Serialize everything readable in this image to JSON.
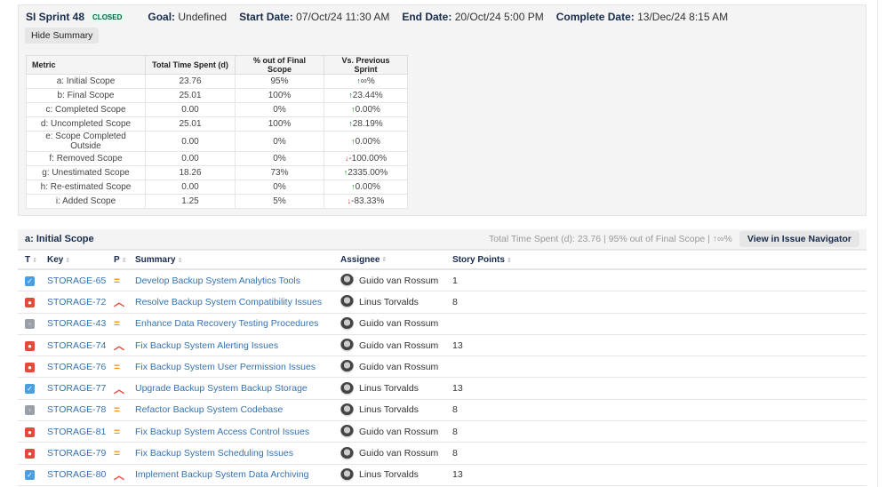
{
  "sprint": {
    "title": "SI Sprint 48",
    "status": "CLOSED",
    "goal_label": "Goal:",
    "goal": "Undefined",
    "start_label": "Start Date:",
    "start": "07/Oct/24 11:30 AM",
    "end_label": "End Date:",
    "end": "20/Oct/24 5:00 PM",
    "complete_label": "Complete Date:",
    "complete": "13/Dec/24 8:15 AM",
    "hide_summary": "Hide Summary"
  },
  "metrics": {
    "headers": [
      "Metric",
      "Total Time Spent (d)",
      "% out of Final Scope",
      "Vs. Previous Sprint"
    ],
    "rows": [
      {
        "metric": "a: Initial Scope",
        "time": "23.76",
        "pct": "95%",
        "dir": "up",
        "vs": "∞%"
      },
      {
        "metric": "b: Final Scope",
        "time": "25.01",
        "pct": "100%",
        "dir": "up",
        "vs": "23.44%"
      },
      {
        "metric": "c: Completed Scope",
        "time": "0.00",
        "pct": "0%",
        "dir": "up",
        "vs": "0.00%"
      },
      {
        "metric": "d: Uncompleted Scope",
        "time": "25.01",
        "pct": "100%",
        "dir": "up",
        "vs": "28.19%"
      },
      {
        "metric": "e: Scope Completed Outside",
        "time": "0.00",
        "pct": "0%",
        "dir": "up",
        "vs": "0.00%"
      },
      {
        "metric": "f: Removed Scope",
        "time": "0.00",
        "pct": "0%",
        "dir": "down",
        "vs": "-100.00%"
      },
      {
        "metric": "g: Unestimated Scope",
        "time": "18.26",
        "pct": "73%",
        "dir": "up",
        "vs": "2335.00%"
      },
      {
        "metric": "h: Re-estimated Scope",
        "time": "0.00",
        "pct": "0%",
        "dir": "up",
        "vs": "0.00%"
      },
      {
        "metric": "i: Added Scope",
        "time": "1.25",
        "pct": "5%",
        "dir": "down",
        "vs": "-83.33%"
      }
    ]
  },
  "scope": {
    "title": "a: Initial Scope",
    "info": "Total Time Spent (d): 23.76 | 95% out of Final Scope | ↑∞%",
    "nav_button": "View in Issue Navigator",
    "columns": [
      "T",
      "Key",
      "P",
      "Summary",
      "Assignee",
      "Story Points"
    ],
    "issues": [
      {
        "type": "task",
        "key": "STORAGE-65",
        "priority": "medium",
        "summary": "Develop Backup System Analytics Tools",
        "assignee": "Guido van Rossum",
        "points": "1"
      },
      {
        "type": "bug",
        "key": "STORAGE-72",
        "priority": "high",
        "summary": "Resolve Backup System Compatibility Issues",
        "assignee": "Linus Torvalds",
        "points": "8"
      },
      {
        "type": "other",
        "key": "STORAGE-43",
        "priority": "medium",
        "summary": "Enhance Data Recovery Testing Procedures",
        "assignee": "Guido van Rossum",
        "points": ""
      },
      {
        "type": "bug",
        "key": "STORAGE-74",
        "priority": "high",
        "summary": "Fix Backup System Alerting Issues",
        "assignee": "Guido van Rossum",
        "points": "13"
      },
      {
        "type": "bug",
        "key": "STORAGE-76",
        "priority": "medium",
        "summary": "Fix Backup System User Permission Issues",
        "assignee": "Guido van Rossum",
        "points": ""
      },
      {
        "type": "task",
        "key": "STORAGE-77",
        "priority": "high",
        "summary": "Upgrade Backup System Backup Storage",
        "assignee": "Linus Torvalds",
        "points": "13"
      },
      {
        "type": "other",
        "key": "STORAGE-78",
        "priority": "medium",
        "summary": "Refactor Backup System Codebase",
        "assignee": "Linus Torvalds",
        "points": "8"
      },
      {
        "type": "bug",
        "key": "STORAGE-81",
        "priority": "medium",
        "summary": "Fix Backup System Access Control Issues",
        "assignee": "Guido van Rossum",
        "points": "8"
      },
      {
        "type": "bug",
        "key": "STORAGE-79",
        "priority": "medium",
        "summary": "Fix Backup System Scheduling Issues",
        "assignee": "Guido van Rossum",
        "points": "8"
      },
      {
        "type": "task",
        "key": "STORAGE-80",
        "priority": "high",
        "summary": "Implement Backup System Data Archiving",
        "assignee": "Linus Torvalds",
        "points": "13"
      }
    ]
  },
  "colors": {
    "task": "#4a9fe0",
    "bug": "#e5493a",
    "other": "#99a0a8",
    "medium": "#f79a1e",
    "high": "#e5493a"
  }
}
